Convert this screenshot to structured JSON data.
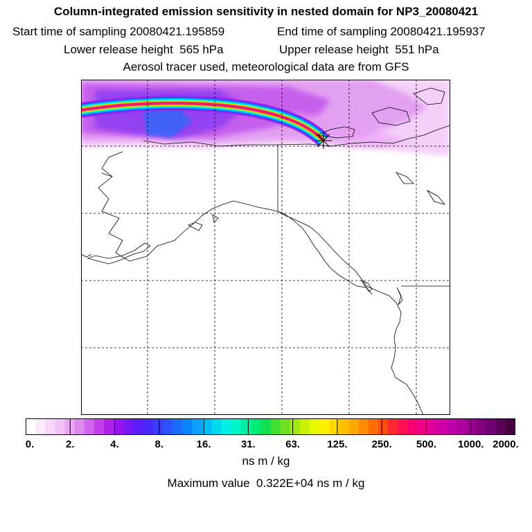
{
  "header": {
    "title": "Column-integrated emission sensitivity in nested domain for NP3_20080421",
    "start_time": "Start time of sampling 20080421.195859",
    "end_time": "End time of sampling 20080421.195937",
    "lower_height": "Lower release height  565 hPa",
    "upper_height": "Upper release height  551 hPa",
    "tracer_note": "Aerosol tracer used, meteorological data are from GFS"
  },
  "colorbar": {
    "tick_labels": [
      "0.",
      "2.",
      "4.",
      "8.",
      "16.",
      "31.",
      "63.",
      "125.",
      "250.",
      "500.",
      "1000.",
      "2000."
    ],
    "colors": [
      "#ffffff",
      "#fbeafc",
      "#f6d6f9",
      "#f0c2f6",
      "#e9a9f2",
      "#dd88ee",
      "#d066eb",
      "#c23fe8",
      "#b020e8",
      "#9a14f0",
      "#7a18f5",
      "#5c1ef8",
      "#4a28fb",
      "#3a3efb",
      "#2a54fb",
      "#1a6afb",
      "#0a84fb",
      "#0aa0fb",
      "#00bcf5",
      "#00d8f0",
      "#00f0e8",
      "#00f5c8",
      "#00f0a0",
      "#00ea78",
      "#10e050",
      "#40e030",
      "#70e020",
      "#a0e810",
      "#c8f000",
      "#e8f800",
      "#fff000",
      "#ffd800",
      "#ffc000",
      "#ffa800",
      "#ff8c00",
      "#ff6c00",
      "#ff4c10",
      "#ff2830",
      "#ff1050",
      "#f80070",
      "#f00088",
      "#e0009a",
      "#d000a8",
      "#c000a8",
      "#ac00a0",
      "#980090",
      "#840080",
      "#700070",
      "#5c0058",
      "#480040"
    ],
    "units": "ns m / kg",
    "max_value": "Maximum value  0.322E+04 ns m / kg"
  },
  "map": {
    "release_marker": "plus-star",
    "plume_colors": [
      "#a020f0",
      "#3050ff",
      "#00c8ff",
      "#00f0d0",
      "#d8f000",
      "#ff4040",
      "#e0207a"
    ]
  }
}
